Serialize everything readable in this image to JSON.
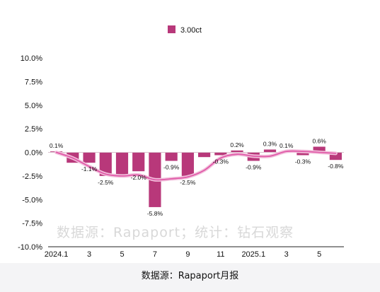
{
  "chart_data": {
    "type": "bar",
    "x": [
      "2024.1",
      "2024.2",
      "2024.3",
      "2024.4",
      "2024.5",
      "2024.6",
      "2024.7",
      "2024.8",
      "2024.9",
      "2024.10",
      "2024.11",
      "2024.12",
      "2025.1",
      "2025.2",
      "2025.3",
      "2025.4",
      "2025.5",
      "2025.6"
    ],
    "x_tick_labels": [
      "2024.1",
      "",
      "3",
      "",
      "5",
      "",
      "7",
      "",
      "9",
      "",
      "11",
      "",
      "2025.1",
      "",
      "3",
      "",
      "5",
      ""
    ],
    "series": [
      {
        "name": "3.00ct",
        "color": "#b8387a",
        "values": [
          0.1,
          -1.1,
          -1.1,
          -2.5,
          -2.5,
          -2.0,
          -5.8,
          -0.9,
          -2.5,
          -0.5,
          -0.3,
          0.2,
          -0.9,
          0.3,
          0.1,
          -0.3,
          0.6,
          -0.8
        ],
        "data_labels": [
          "0.1%",
          "",
          "-1.1%",
          "-2.5%",
          "",
          "-2.0%",
          "-5.8%",
          "-0.9%",
          "-2.5%",
          "",
          "-0.3%",
          "0.2%",
          "-0.9%",
          "0.3%",
          "0.1%",
          "-0.3%",
          "0.6%",
          "-0.8%"
        ]
      },
      {
        "type": "line",
        "color": "#e05aa8",
        "values": [
          0.0,
          -0.6,
          -1.5,
          -2.3,
          -2.5,
          -2.4,
          -2.9,
          -2.8,
          -2.6,
          -1.9,
          -0.6,
          -0.2,
          -0.4,
          -0.4,
          0.1,
          0.1,
          0.0,
          -0.1
        ]
      }
    ],
    "ylim": [
      -10.0,
      10.0
    ],
    "y_ticks": [
      "10.0%",
      "7.5%",
      "5.0%",
      "2.5%",
      "0.0%",
      "-2.5%",
      "-5.0%",
      "-7.5%",
      "-10.0%"
    ],
    "y_tick_values": [
      10.0,
      7.5,
      5.0,
      2.5,
      0.0,
      -2.5,
      -5.0,
      -7.5,
      -10.0
    ],
    "grid": false,
    "legend_position": "top-center",
    "legend_label": "3.00ct"
  },
  "watermark": "数据源：Rapaport；统计：钻石观察",
  "source": "数据源：Rapaport月报"
}
